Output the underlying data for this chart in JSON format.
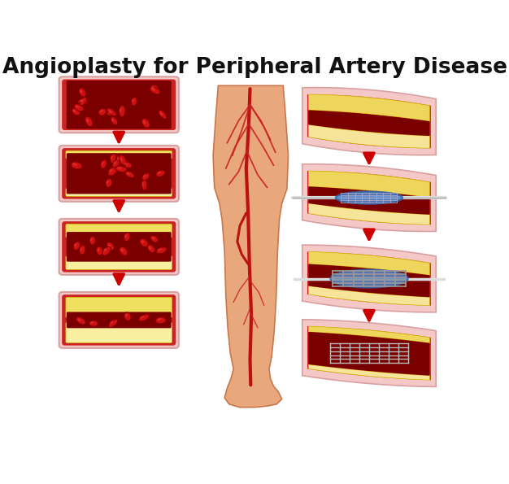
{
  "title": "Angioplasty for Peripheral Artery Disease",
  "title_fontsize": 19,
  "title_fontweight": "bold",
  "background_color": "#ffffff",
  "arrow_color": "#cc0000",
  "skin_color": "#e8a87c",
  "skin_edge": "#c8784c",
  "artery_red": "#cc2222",
  "artery_dark_red": "#7a0000",
  "artery_light": "#f4a0a0",
  "artery_outer": "#f5c8c8",
  "artery_mid": "#e06060",
  "plaque_yellow": "#f0e060",
  "plaque_cream": "#f8f0a0",
  "rbc_color": "#cc1111",
  "rbc_dark": "#880000",
  "rbc_highlight": "#ff4444",
  "balloon_blue": "#5588cc",
  "balloon_light_blue": "#aaccee",
  "stent_color": "#999999",
  "stent_dark": "#666666",
  "catheter_color": "#dddddd",
  "catheter_edge": "#aaaaaa"
}
